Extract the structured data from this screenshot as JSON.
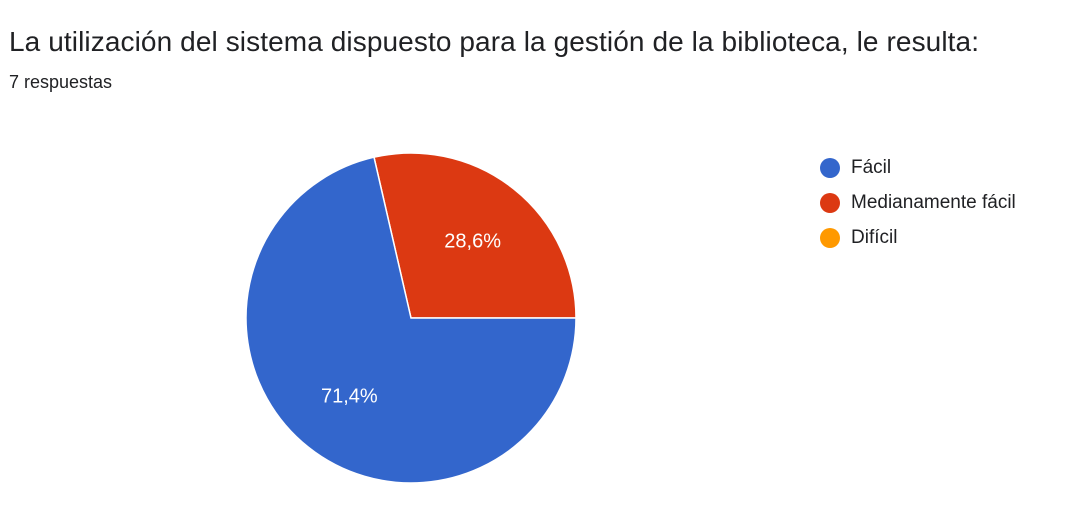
{
  "title": "La utilización del sistema dispuesto para la gestión de la biblioteca, le resulta:",
  "subtitle": "7 respuestas",
  "chart_data": {
    "type": "pie",
    "title": "La utilización del sistema dispuesto para la gestión de la biblioteca, le resulta:",
    "categories": [
      "Fácil",
      "Medianamente fácil",
      "Difícil"
    ],
    "values": [
      71.4,
      28.6,
      0
    ],
    "data_labels": [
      "71,4%",
      "28,6%",
      ""
    ],
    "colors": [
      "#3366cc",
      "#dc3912",
      "#ff9900"
    ],
    "legend_position": "right"
  }
}
